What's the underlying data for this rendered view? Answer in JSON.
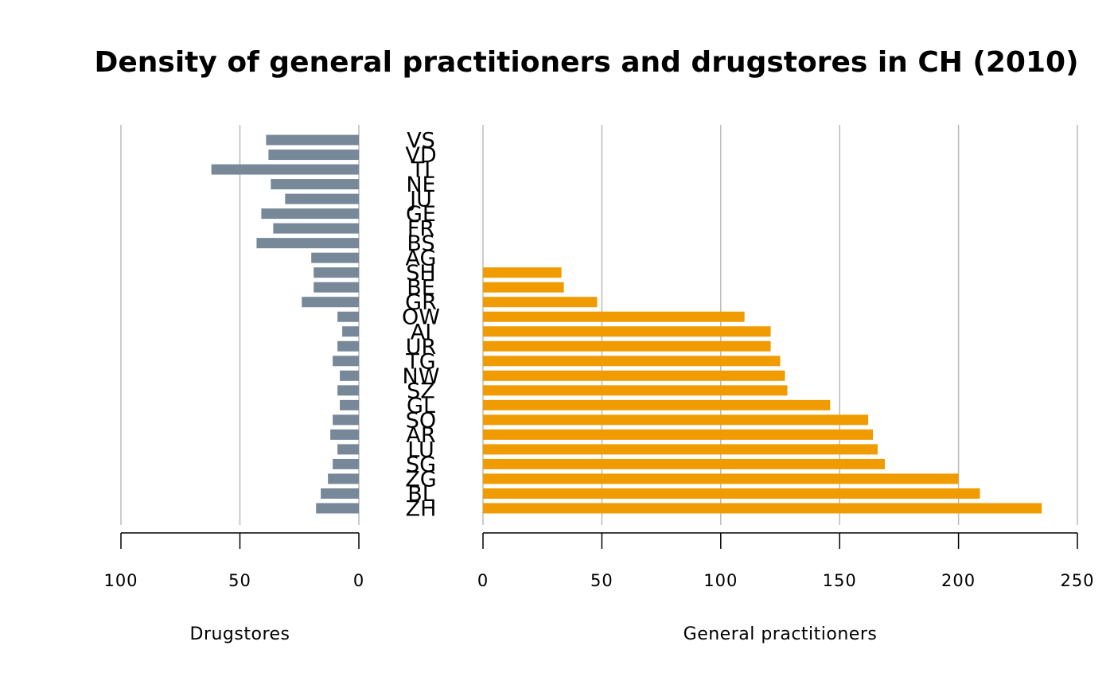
{
  "chart_data": {
    "type": "pyramid",
    "title": "Density of general practitioners and drugstores in CH (2010)",
    "categories": [
      "VS",
      "VD",
      "TI",
      "NE",
      "JU",
      "GE",
      "FR",
      "BS",
      "AG",
      "SH",
      "BE",
      "GR",
      "OW",
      "AI",
      "UR",
      "TG",
      "NW",
      "SZ",
      "GL",
      "SO",
      "AR",
      "LU",
      "SG",
      "ZG",
      "BL",
      "ZH"
    ],
    "grid": true,
    "series": [
      {
        "name": "Drugstores",
        "color": "#778899",
        "values": [
          39,
          38,
          62,
          37,
          31,
          41,
          36,
          43,
          20,
          19,
          19,
          24,
          9,
          7,
          9,
          11,
          8,
          9,
          8,
          11,
          12,
          9,
          11,
          13,
          16,
          18
        ],
        "xlim": [
          100,
          0
        ],
        "xticks": [
          100,
          50,
          0
        ]
      },
      {
        "name": "General practitioners",
        "color": "#f09c00",
        "values": [
          null,
          null,
          null,
          null,
          null,
          null,
          null,
          null,
          null,
          33,
          34,
          48,
          110,
          121,
          121,
          125,
          127,
          128,
          146,
          162,
          164,
          166,
          169,
          200,
          209,
          235
        ],
        "xlim": [
          0,
          250
        ],
        "xticks": [
          0,
          50,
          100,
          150,
          200,
          250
        ]
      }
    ]
  }
}
